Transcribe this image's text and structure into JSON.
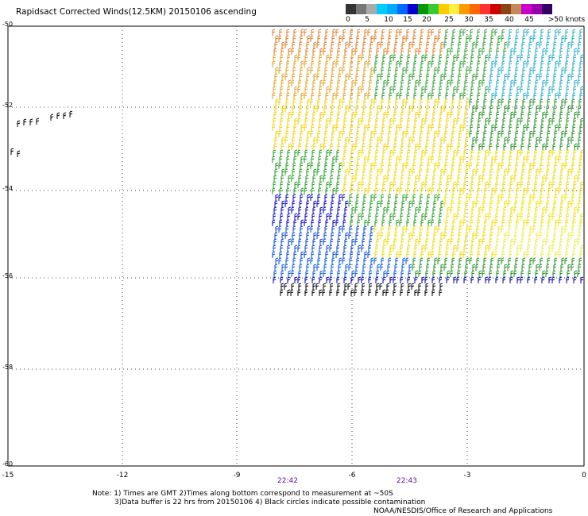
{
  "title": "Rapidsact Corrected Winds(12.5KM) 20150106 ascending",
  "colorbar": {
    "colors": [
      "#333333",
      "#777777",
      "#aaaaaa",
      "#00ccff",
      "#00aaff",
      "#0066ff",
      "#0000cc",
      "#009900",
      "#33cc33",
      "#ffcc00",
      "#ffee44",
      "#ff9900",
      "#ff6600",
      "#ff3333",
      "#cc0000",
      "#8b4513",
      "#c28a5a",
      "#cc00cc",
      "#9900aa",
      "#330066"
    ],
    "labels": [
      "0",
      "5",
      "10",
      "15",
      "20",
      "25",
      "30",
      "35",
      "40",
      "45",
      ">50 knots"
    ]
  },
  "axes": {
    "y_labels": [
      "-50",
      "-52",
      "-54",
      "-56",
      "-58",
      "-60"
    ],
    "x_labels": [
      "-15",
      "-12",
      "-9",
      "-6",
      "-3",
      "0"
    ]
  },
  "times": [
    "22:42",
    "22:43"
  ],
  "notes": {
    "line1": "Note: 1) Times are GMT 2)Times along bottom correspond to measurement at ~50S",
    "line2": "3)Data buffer is 22 hrs from 20150106 4) Black circles indicate possible contamination",
    "line3": "NOAA/NESDIS/Office of Research and Applications"
  }
}
